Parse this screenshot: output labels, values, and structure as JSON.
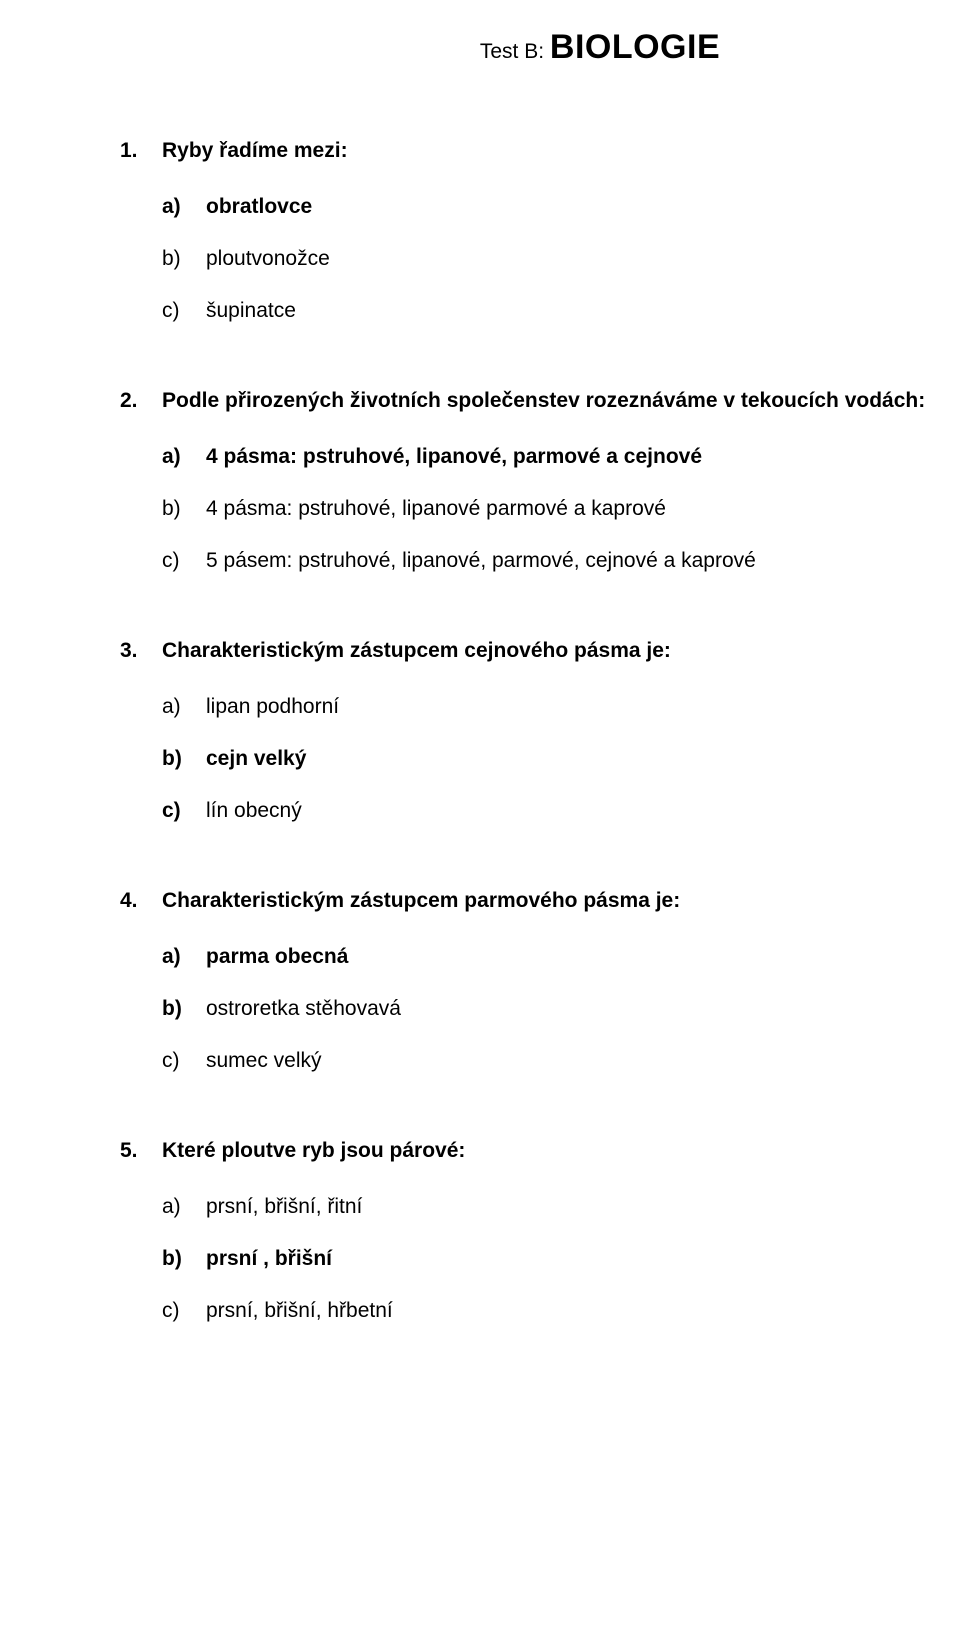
{
  "title": {
    "prefix": "Test B:  ",
    "main": "BIOLOGIE"
  },
  "questions": [
    {
      "number": "1.",
      "text": "Ryby řadíme mezi:",
      "options": [
        {
          "letter": "a)",
          "text": "obratlovce",
          "letter_bold": true,
          "text_bold": true
        },
        {
          "letter": "b)",
          "text": "ploutvonožce",
          "letter_bold": false,
          "text_bold": false
        },
        {
          "letter": "c)",
          "text": "šupinatce",
          "letter_bold": false,
          "text_bold": false
        }
      ]
    },
    {
      "number": "2.",
      "text": "Podle přirozených životních společenstev rozeznáváme v tekoucích vodách:",
      "options": [
        {
          "letter": "a)",
          "text": "4 pásma: pstruhové, lipanové, parmové a cejnové",
          "letter_bold": true,
          "text_bold": true
        },
        {
          "letter": "b)",
          "text": "4 pásma: pstruhové, lipanové parmové a kaprové",
          "letter_bold": false,
          "text_bold": false
        },
        {
          "letter": "c)",
          "text": "5 pásem: pstruhové, lipanové, parmové, cejnové a kaprové",
          "letter_bold": false,
          "text_bold": false
        }
      ]
    },
    {
      "number": "3.",
      "text": "Charakteristickým zástupcem cejnového pásma je:",
      "options": [
        {
          "letter": "a)",
          "text": "lipan podhorní",
          "letter_bold": false,
          "text_bold": false
        },
        {
          "letter": "b)",
          "text": "cejn velký",
          "letter_bold": true,
          "text_bold": true
        },
        {
          "letter": "c)",
          "text": "lín obecný",
          "letter_bold": true,
          "text_bold": false
        }
      ]
    },
    {
      "number": "4.",
      "text": "Charakteristickým zástupcem parmového pásma je:",
      "options": [
        {
          "letter": "a)",
          "text": "parma obecná",
          "letter_bold": true,
          "text_bold": true
        },
        {
          "letter": "b)",
          "text": "ostroretka stěhovavá",
          "letter_bold": true,
          "text_bold": false
        },
        {
          "letter": "c)",
          "text": "sumec velký",
          "letter_bold": false,
          "text_bold": false
        }
      ]
    },
    {
      "number": "5.",
      "text": "Které ploutve ryb jsou párové:",
      "options": [
        {
          "letter": "a)",
          "text": "prsní, břišní, řitní",
          "letter_bold": false,
          "text_bold": false
        },
        {
          "letter": "b)",
          "text": "prsní , břišní",
          "letter_bold": true,
          "text_bold": true
        },
        {
          "letter": "c)",
          "text": "prsní, břišní, hřbetní",
          "letter_bold": false,
          "text_bold": false
        }
      ]
    }
  ]
}
